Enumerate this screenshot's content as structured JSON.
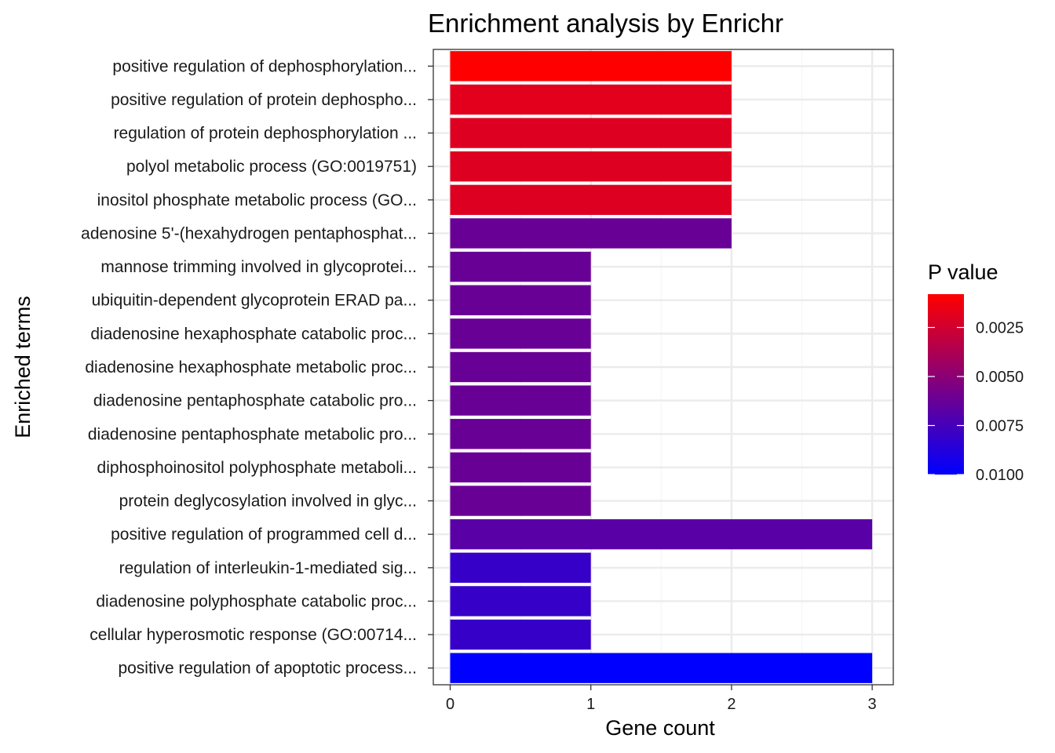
{
  "chart_data": {
    "type": "bar",
    "orientation": "horizontal",
    "title": "Enrichment analysis by Enrichr",
    "xlabel": "Gene count",
    "ylabel": "Enriched terms",
    "xlim": [
      -0.12,
      3.15
    ],
    "x_ticks": [
      0,
      1,
      2,
      3
    ],
    "grid": true,
    "categories": [
      "positive regulation of dephosphorylation...",
      "positive regulation of protein dephospho...",
      "regulation of protein dephosphorylation ...",
      "polyol metabolic process (GO:0019751)",
      "inositol phosphate metabolic process (GO...",
      "adenosine 5'-(hexahydrogen pentaphosphat...",
      "mannose trimming involved in glycoprotei...",
      "ubiquitin-dependent glycoprotein ERAD pa...",
      "diadenosine hexaphosphate catabolic proc...",
      "diadenosine hexaphosphate metabolic proc...",
      "diadenosine pentaphosphate catabolic pro...",
      "diadenosine pentaphosphate metabolic pro...",
      "diphosphoinositol polyphosphate metaboli...",
      "protein deglycosylation involved in glyc...",
      "positive regulation of programmed cell d...",
      "regulation of interleukin-1-mediated sig...",
      "diadenosine polyphosphate catabolic proc...",
      "cellular hyperosmotic response (GO:00714...",
      "positive regulation of apoptotic process..."
    ],
    "values": [
      2,
      2,
      2,
      2,
      2,
      2,
      1,
      1,
      1,
      1,
      1,
      1,
      1,
      1,
      3,
      1,
      1,
      1,
      3
    ],
    "p_values": [
      0.0008,
      0.0018,
      0.002,
      0.002,
      0.002,
      0.0062,
      0.0062,
      0.0062,
      0.0062,
      0.0062,
      0.0062,
      0.0062,
      0.0062,
      0.0062,
      0.0068,
      0.008,
      0.008,
      0.008,
      0.01
    ],
    "legend": {
      "title": "P value",
      "position": "right",
      "range": [
        0.0008,
        0.01
      ],
      "ticks": [
        0.0025,
        0.005,
        0.0075,
        0.01
      ],
      "tick_labels": [
        "0.0025",
        "0.0050",
        "0.0075",
        "0.0100"
      ],
      "low_color": "#ff0000",
      "high_color": "#0000ff"
    },
    "colors": {
      "panel_border": "#333333",
      "grid_major": "#ebebeb",
      "grid_minor": "#f5f5f5"
    }
  }
}
